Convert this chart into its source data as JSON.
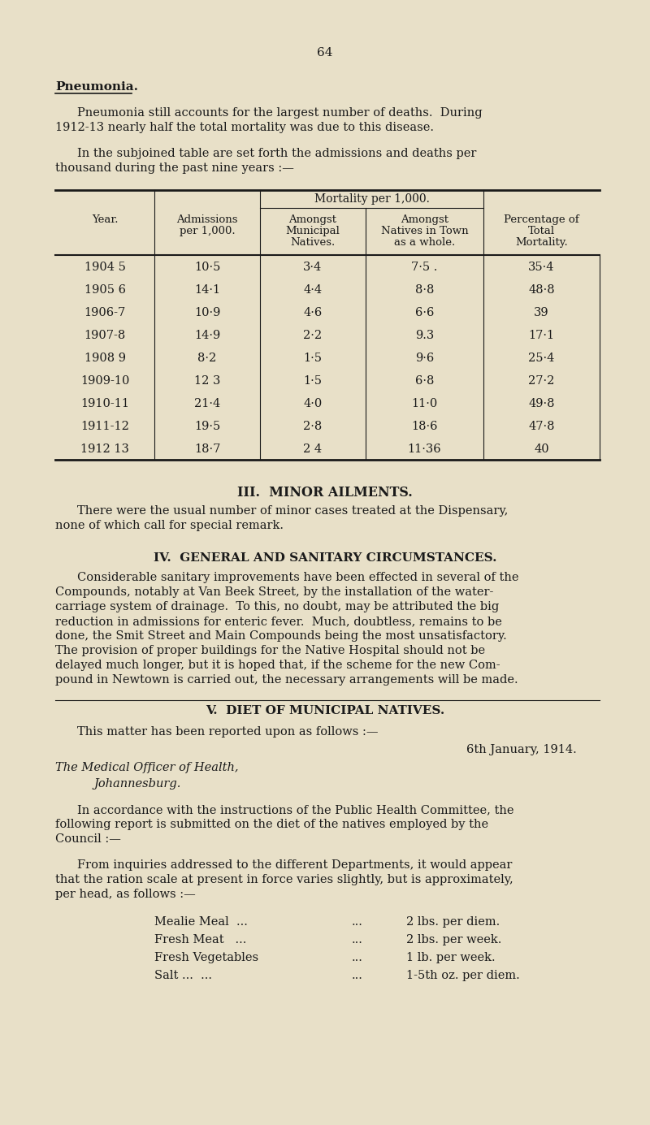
{
  "page_number": "64",
  "bg_color": "#e8e0c8",
  "text_color": "#1a1a1a",
  "section1_heading": "Pneumonia.",
  "section1_para1": "Pneumonia still accounts for the largest number of deaths.  During\n1912-13 nearly half the total mortality was due to this disease.",
  "section1_para2": "In the subjoined table are set forth the admissions and deaths per\nthousand during the past nine years :—",
  "table_header_row1_col1": "Year.",
  "table_header_row1_col2": "Admissions\nper 1,000.",
  "table_header_span": "Mortality per 1,000.",
  "table_header_row1_col3": "Amongst\nMunicipal\nNatives.",
  "table_header_row1_col4": "Amongst\nNatives in Town\nas a whole.",
  "table_header_row1_col5": "Percentage of\nTotal\nMortality.",
  "table_rows": [
    [
      "1904 5",
      "10·5",
      "3·4",
      "7·5 .",
      "35·4"
    ],
    [
      "1905 6",
      "14·1",
      "4·4",
      "8·8",
      "48·8"
    ],
    [
      "1906-7",
      "10·9",
      "4·6",
      "6·6",
      "39"
    ],
    [
      "1907-8",
      "14·9",
      "2·2",
      "9.3",
      "17·1"
    ],
    [
      "1908 9",
      "8·2",
      "1·5",
      "9·6",
      "25·4"
    ],
    [
      "1909-10",
      "12 3",
      "1·5",
      "6·8",
      "27·2"
    ],
    [
      "1910-11",
      "21·4",
      "4·0",
      "11·0",
      "49·8"
    ],
    [
      "1911-12",
      "19·5",
      "2·8",
      "18·6",
      "47·8"
    ],
    [
      "1912 13",
      "18·7",
      "2 4",
      "11·36",
      "40"
    ]
  ],
  "section3_heading": "III.  MINOR AILMENTS.",
  "section3_para": "There were the usual number of minor cases treated at the Dispensary,\nnone of which call for special remark.",
  "section4_heading": "IV.  GENERAL AND SANITARY CIRCUMSTANCES.",
  "section4_para": "Considerable sanitary improvements have been effected in several of the\nCompounds, notably at Van Beek Street, by the installation of the water-\ncarriage system of drainage.  To this, no doubt, may be attributed the big\nreduction in admissions for enteric fever.  Much, doubtless, remains to be\ndone, the Smit Street and Main Compounds being the most unsatisfactory.\nThe provision of proper buildings for the Native Hospital should not be\ndelayed much longer, but it is hoped that, if the scheme for the new Com-\npound in Newtown is carried out, the necessary arrangements will be made.",
  "section5_heading": "V.  DIET OF MUNICIPAL NATIVES.",
  "section5_para1": "This matter has been reported upon as follows :—",
  "section5_date": "6th January, 1914.",
  "section5_addressee_line1": "The Medical Officer of Health,",
  "section5_addressee_line2": "Johannesburg.",
  "section5_para2": "In accordance with the instructions of the Public Health Committee, the\nfollowing report is submitted on the diet of the natives employed by the\nCouncil :—",
  "section5_para3": "From inquiries addressed to the different Departments, it would appear\nthat the ration scale at present in force varies slightly, but is approximately,\nper head, as follows :—",
  "diet_items": [
    [
      "Mealie Meal  ...",
      "...",
      "2 lbs. per diem."
    ],
    [
      "Fresh Meat   ...",
      "...",
      "2 lbs. per week."
    ],
    [
      "Fresh Vegetables",
      "...",
      "1 lb. per week."
    ],
    [
      "Salt ...  ...",
      "...",
      "1-5th oz. per diem."
    ]
  ]
}
